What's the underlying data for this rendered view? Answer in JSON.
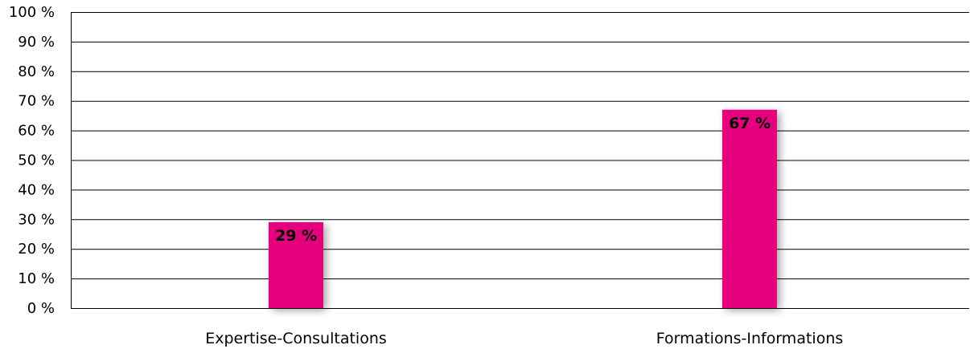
{
  "chart_data": {
    "type": "bar",
    "title": "",
    "xlabel": "",
    "ylabel": "",
    "categories": [
      "Expertise-Consultations",
      "Formations-Informations"
    ],
    "values": [
      29,
      67
    ],
    "data_labels": [
      "29 %",
      "67 %"
    ],
    "ylim": [
      0,
      100
    ],
    "yticks": [
      0,
      10,
      20,
      30,
      40,
      50,
      60,
      70,
      80,
      90,
      100
    ],
    "ytick_labels": [
      "0 %",
      "10 %",
      "20 %",
      "30 %",
      "40 %",
      "50 %",
      "60 %",
      "70 %",
      "80 %",
      "90 %",
      "100 %"
    ],
    "grid": true,
    "legend": "none",
    "colors": {
      "bar": "#E6007E",
      "grid": "#000000",
      "text": "#000000",
      "background": "#FFFFFF"
    }
  }
}
